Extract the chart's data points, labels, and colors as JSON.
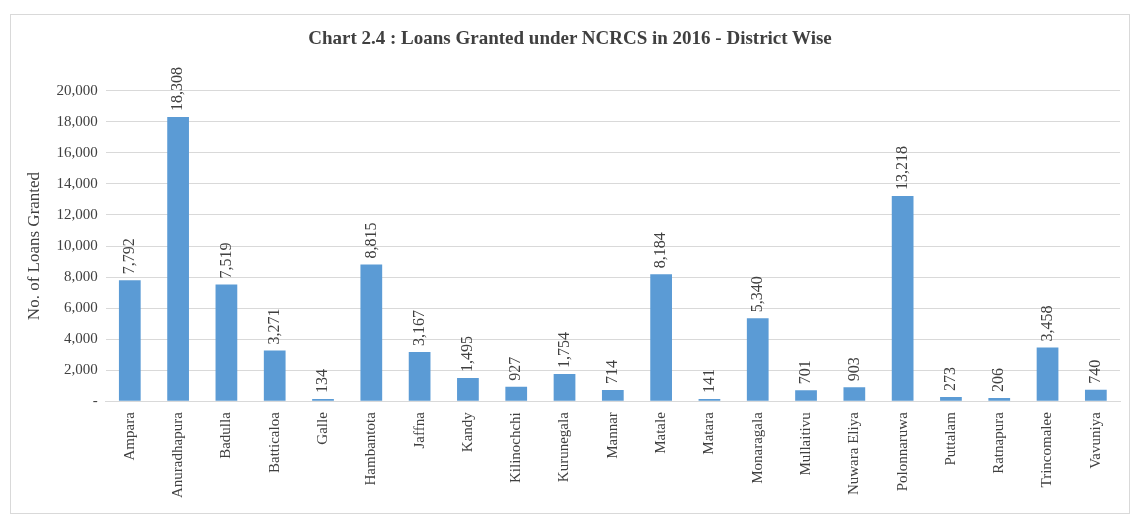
{
  "chart_data": {
    "type": "bar",
    "title": "Chart 2.4 : Loans Granted under NCRCS in 2016 - District Wise",
    "ylabel": "No. of Loans Granted",
    "categories": [
      "Ampara",
      "Anuradhapura",
      "Badulla",
      "Batticaloa",
      "Galle",
      "Hambantota",
      "Jaffna",
      "Kandy",
      "Kilinochchi",
      "Kurunegala",
      "Mannar",
      "Matale",
      "Matara",
      "Monaragala",
      "Mullaitivu",
      "Nuwara Eliya",
      "Polonnaruwa",
      "Puttalam",
      "Ratnapura",
      "Trincomalee",
      "Vavuniya"
    ],
    "values": [
      7792,
      18308,
      7519,
      3271,
      134,
      8815,
      3167,
      1495,
      927,
      1754,
      714,
      8184,
      141,
      5340,
      701,
      903,
      13218,
      273,
      206,
      3458,
      740
    ],
    "color": "#5b9bd5",
    "ylim": [
      0,
      20000
    ],
    "yticks": [
      {
        "value": 0,
        "label": "-"
      },
      {
        "value": 2000,
        "label": "2,000"
      },
      {
        "value": 4000,
        "label": "4,000"
      },
      {
        "value": 6000,
        "label": "6,000"
      },
      {
        "value": 8000,
        "label": "8,000"
      },
      {
        "value": 10000,
        "label": "10,000"
      },
      {
        "value": 12000,
        "label": "12,000"
      },
      {
        "value": 14000,
        "label": "14,000"
      },
      {
        "value": 16000,
        "label": "16,000"
      },
      {
        "value": 18000,
        "label": "18,000"
      },
      {
        "value": 20000,
        "label": "20,000"
      }
    ],
    "value_labels": [
      "7,792",
      "18,308",
      "7,519",
      "3,271",
      "134",
      "8,815",
      "3,167",
      "1,495",
      "927",
      "1,754",
      "714",
      "8,184",
      "141",
      "5,340",
      "701",
      "903",
      "13,218",
      "273",
      "206",
      "3,458",
      "740"
    ],
    "grid": "y",
    "legend": false
  }
}
